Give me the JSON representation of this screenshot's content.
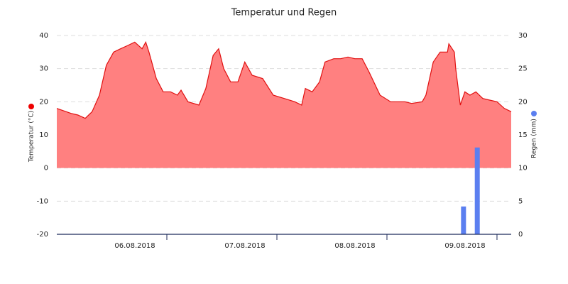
{
  "chart_data": {
    "type": "area-bar",
    "title": "Temperatur und Regen",
    "ylabel": "Temperatur (°C)",
    "y2label": "Regen (mm)",
    "xlim": [
      0,
      99.1
    ],
    "xticks": [
      {
        "value": 24,
        "label": "06.08.2018"
      },
      {
        "value": 48,
        "label": "07.08.2018"
      },
      {
        "value": 72,
        "label": "08.08.2018"
      },
      {
        "value": 96,
        "label": "09.08.2018"
      }
    ],
    "ylim": [
      -20,
      40
    ],
    "yticks": [
      -20,
      -10,
      0,
      10,
      20,
      30,
      40
    ],
    "y2lim": [
      0,
      30
    ],
    "y2ticks": [
      0,
      5,
      10,
      15,
      20,
      25,
      30
    ],
    "grid": true,
    "series": [
      {
        "type": "area",
        "color": "#e01010",
        "fill": "#ff8080",
        "x": [
          0,
          3.1,
          4.6,
          6.2,
          7.7,
          9.3,
          10.8,
          12.4,
          13.9,
          15.5,
          17,
          18.6,
          19.4,
          20.1,
          21.7,
          23.2,
          24.8,
          26.3,
          27.1,
          28.6,
          31,
          32.5,
          34.1,
          35.3,
          36.4,
          37.9,
          39.5,
          41,
          42.6,
          44.9,
          47.2,
          49.6,
          51.9,
          53.4,
          54.2,
          55.7,
          57.3,
          58.5,
          60.4,
          61.9,
          63.5,
          65,
          66.6,
          68.1,
          70.5,
          72.8,
          74.3,
          75.9,
          77.4,
          79.7,
          80.5,
          82.1,
          83.6,
          85.2,
          85.5,
          86.7,
          87,
          88,
          89,
          90.1,
          91.4,
          92.9,
          94.4,
          96,
          97.6,
          99.1
        ],
        "values": [
          18,
          16.5,
          16,
          15,
          17,
          22,
          31,
          35,
          36,
          37,
          38,
          36,
          38,
          35,
          27,
          23,
          23,
          22,
          23.5,
          20,
          19,
          24,
          34,
          36,
          30,
          26,
          26,
          32,
          28,
          27,
          22,
          21,
          20,
          19,
          24,
          23,
          26,
          32,
          33,
          33,
          33.5,
          33,
          33,
          29,
          22,
          20,
          20,
          20,
          19.5,
          20,
          22,
          32,
          35,
          35,
          37.5,
          35,
          30,
          19,
          23,
          22,
          23,
          21,
          20.5,
          20,
          18,
          17
        ]
      },
      {
        "type": "bar",
        "axis": "y2",
        "color": "#5b7ff0",
        "x": [
          88.7,
          91.7
        ],
        "values": [
          4.2,
          13.1
        ]
      }
    ]
  }
}
